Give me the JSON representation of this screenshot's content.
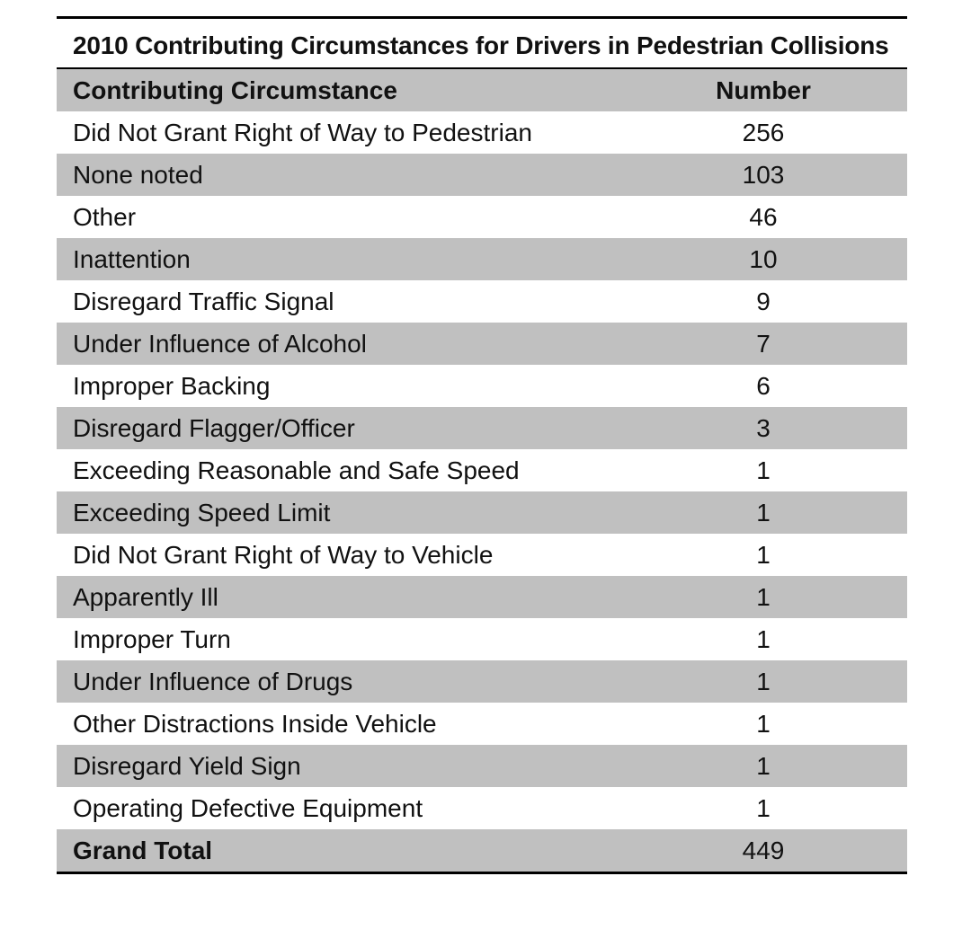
{
  "chart_data": {
    "type": "table",
    "title": "2010 Contributing Circumstances for Drivers in Pedestrian Collisions",
    "columns": [
      "Contributing Circumstance",
      "Number"
    ],
    "rows": [
      {
        "label": "Did Not Grant Right of Way to Pedestrian",
        "value": "256"
      },
      {
        "label": "None noted",
        "value": "103"
      },
      {
        "label": "Other",
        "value": "46"
      },
      {
        "label": "Inattention",
        "value": "10"
      },
      {
        "label": "Disregard Traffic Signal",
        "value": "9"
      },
      {
        "label": "Under Influence of Alcohol",
        "value": "7"
      },
      {
        "label": "Improper Backing",
        "value": "6"
      },
      {
        "label": "Disregard Flagger/Officer",
        "value": "3"
      },
      {
        "label": "Exceeding Reasonable and Safe Speed",
        "value": "1"
      },
      {
        "label": "Exceeding Speed Limit",
        "value": "1"
      },
      {
        "label": "Did Not Grant Right of Way to Vehicle",
        "value": "1"
      },
      {
        "label": "Apparently Ill",
        "value": "1"
      },
      {
        "label": "Improper Turn",
        "value": "1"
      },
      {
        "label": "Under Influence of Drugs",
        "value": "1"
      },
      {
        "label": "Other Distractions Inside Vehicle",
        "value": "1"
      },
      {
        "label": "Disregard Yield Sign",
        "value": "1"
      },
      {
        "label": "Operating Defective Equipment",
        "value": "1"
      }
    ],
    "total": {
      "label": "Grand Total",
      "value": "449"
    },
    "shading_color": "#c0c0c0"
  }
}
